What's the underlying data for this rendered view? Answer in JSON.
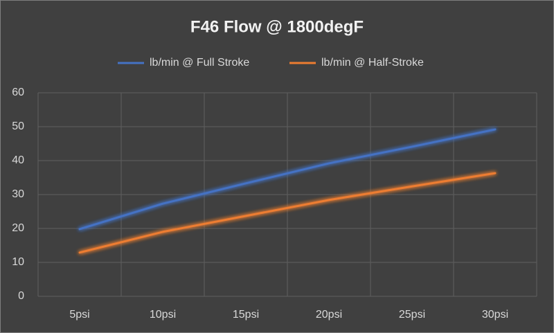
{
  "chart_data": {
    "type": "line",
    "title": "F46 Flow @ 1800degF",
    "categories": [
      "5psi",
      "10psi",
      "15psi",
      "20psi",
      "25psi",
      "30psi"
    ],
    "series": [
      {
        "name": "lb/min @ Full Stroke",
        "color": "#4472c4",
        "values": [
          19.8,
          27.3,
          33.3,
          39.2,
          44.1,
          49.2
        ]
      },
      {
        "name": "lb/min @ Half-Stroke",
        "color": "#ed7d31",
        "values": [
          12.9,
          19.0,
          23.7,
          28.4,
          32.4,
          36.3
        ]
      }
    ],
    "ylim": [
      0,
      60
    ],
    "yticks": [
      0,
      10,
      20,
      30,
      40,
      50,
      60
    ],
    "grid": true,
    "legend": "top"
  }
}
